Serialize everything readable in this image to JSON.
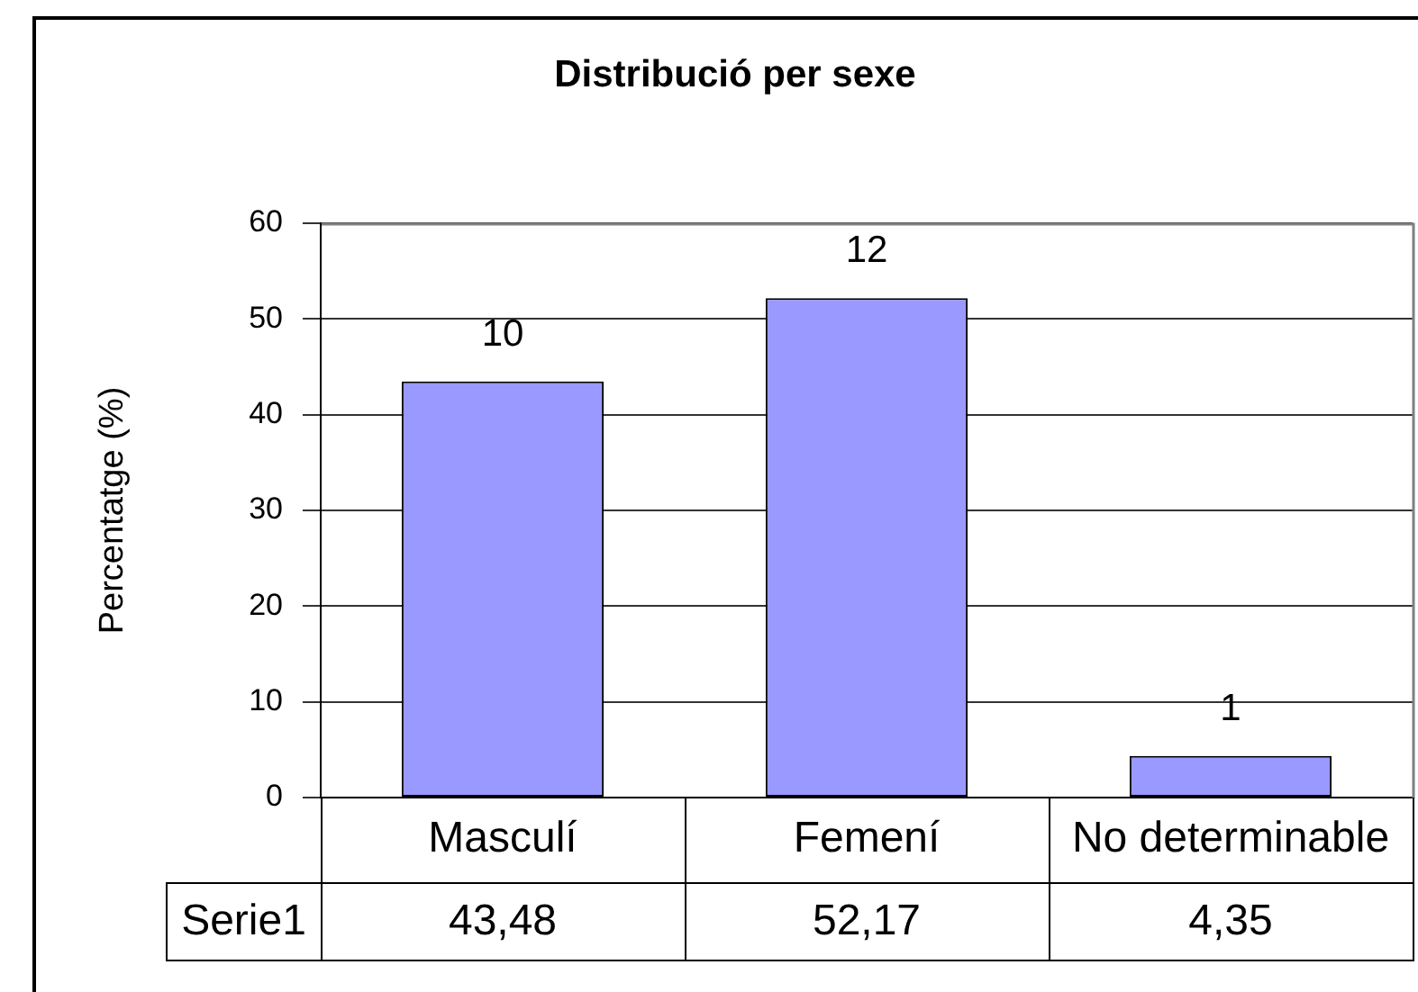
{
  "chart_data": {
    "type": "bar",
    "title": "Distribució per sexe",
    "ylabel": "Percentatge (%)",
    "categories": [
      "Masculí",
      "Femení",
      "No determinable"
    ],
    "series": [
      {
        "name": "Serie1",
        "color": "#9999ff",
        "values": [
          43.48,
          52.17,
          4.35
        ],
        "value_labels": [
          "43,48",
          "52,17",
          "4,35"
        ]
      }
    ],
    "annotations": [
      {
        "text": "10",
        "x": "Masculí",
        "y": 43.48
      },
      {
        "text": "12",
        "x": "Femení",
        "y": 52.17
      },
      {
        "text": "1",
        "x": "No determinable",
        "y": 4.35
      }
    ],
    "ylim": [
      0,
      60
    ],
    "yticks": [
      0,
      10,
      20,
      30,
      40,
      50,
      60
    ],
    "grid": "y"
  }
}
